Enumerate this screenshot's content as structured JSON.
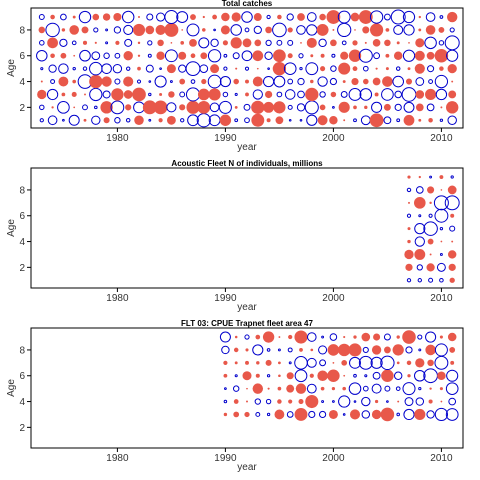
{
  "colors": {
    "positive": "#E8584A",
    "negative": "#0000CC",
    "axis": "#000000",
    "background": "#ffffff"
  },
  "chart_data": [
    {
      "type": "scatter",
      "subtype": "bubble-residuals",
      "title": "Total catches",
      "xlabel": "year",
      "ylabel": "Age",
      "xlim": [
        1972,
        2012
      ],
      "ylim": [
        0.4,
        9.7
      ],
      "xticks": [
        1980,
        1990,
        2000,
        2010
      ],
      "yticks": [
        2,
        4,
        6,
        8
      ],
      "years": [
        1973,
        2011
      ],
      "ages": [
        1,
        9
      ],
      "pattern_seed": 11
    },
    {
      "type": "scatter",
      "subtype": "bubble-residuals",
      "title": "Acoustic Fleet  N of individuals, millions",
      "xlabel": "year",
      "ylabel": "Age",
      "xlim": [
        1972,
        2012
      ],
      "ylim": [
        0.4,
        9.7
      ],
      "xticks": [
        1980,
        1990,
        2000,
        2010
      ],
      "yticks": [
        2,
        4,
        6,
        8
      ],
      "years": [
        2007,
        2011
      ],
      "ages": [
        1,
        9
      ],
      "pattern_seed": 23
    },
    {
      "type": "scatter",
      "subtype": "bubble-residuals",
      "title": "FLT 03: CPUE Trapnet fleet area 47",
      "xlabel": "year",
      "ylabel": "Age",
      "xlim": [
        1972,
        2012
      ],
      "ylim": [
        0.4,
        9.7
      ],
      "xticks": [
        1980,
        1990,
        2000,
        2010
      ],
      "yticks": [
        2,
        4,
        6,
        8
      ],
      "years": [
        1990,
        2011
      ],
      "ages": [
        3,
        9
      ],
      "pattern_seed": 37
    }
  ]
}
